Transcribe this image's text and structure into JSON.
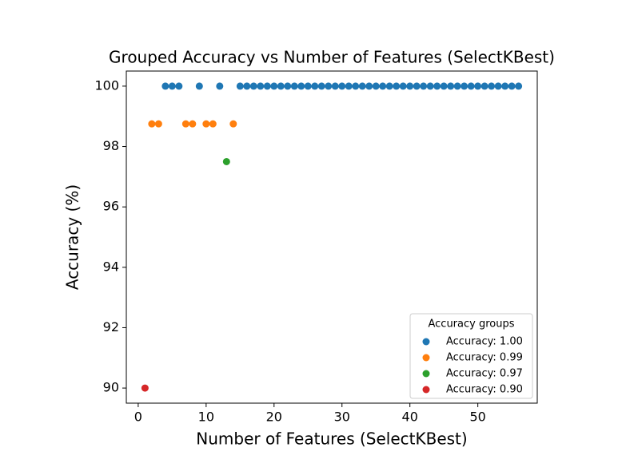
{
  "chart_data": {
    "type": "scatter",
    "title": "Grouped Accuracy vs Number of Features (SelectKBest)",
    "x_label": "Number of Features (SelectKBest)",
    "y_label": "Accuracy (%)",
    "legend_title": "Accuracy groups",
    "legend_position": "lower right",
    "xlim": [
      -1.75,
      58.75
    ],
    "xticks": [
      0,
      10,
      20,
      30,
      40,
      50
    ],
    "ylim": [
      89.5,
      100.5
    ],
    "yticks": [
      90,
      92,
      94,
      96,
      98,
      100
    ],
    "series": [
      {
        "name": "Accuracy: 1.00",
        "color": "#1f77b4",
        "x": [
          4,
          5,
          6,
          9,
          12,
          15,
          16,
          17,
          18,
          19,
          20,
          21,
          22,
          23,
          24,
          25,
          26,
          27,
          28,
          29,
          30,
          31,
          32,
          33,
          34,
          35,
          36,
          37,
          38,
          39,
          40,
          41,
          42,
          43,
          44,
          45,
          46,
          47,
          48,
          49,
          50,
          51,
          52,
          53,
          54,
          55,
          56
        ],
        "values": [
          100,
          100,
          100,
          100,
          100,
          100,
          100,
          100,
          100,
          100,
          100,
          100,
          100,
          100,
          100,
          100,
          100,
          100,
          100,
          100,
          100,
          100,
          100,
          100,
          100,
          100,
          100,
          100,
          100,
          100,
          100,
          100,
          100,
          100,
          100,
          100,
          100,
          100,
          100,
          100,
          100,
          100,
          100,
          100,
          100,
          100,
          100
        ]
      },
      {
        "name": "Accuracy: 0.99",
        "color": "#ff7f0e",
        "x": [
          2,
          3,
          7,
          8,
          10,
          11,
          14
        ],
        "values": [
          98.75,
          98.75,
          98.75,
          98.75,
          98.75,
          98.75,
          98.75
        ]
      },
      {
        "name": "Accuracy: 0.97",
        "color": "#2ca02c",
        "x": [
          13
        ],
        "values": [
          97.5
        ]
      },
      {
        "name": "Accuracy: 0.90",
        "color": "#d62728",
        "x": [
          1
        ],
        "values": [
          90
        ]
      }
    ]
  }
}
